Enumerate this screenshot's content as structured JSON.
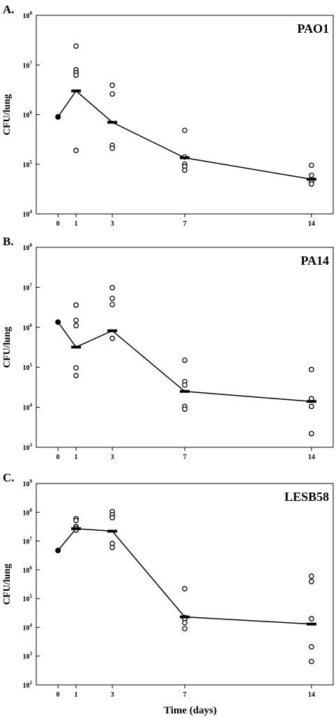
{
  "figure": {
    "xlabel": "Time (days)"
  },
  "chart_data": [
    {
      "panel": "A.",
      "strain": "PAO1",
      "type": "scatter",
      "ylabel": "CFU/lung",
      "yscale": "log",
      "ylim": [
        10000,
        100000000
      ],
      "xlim": [
        -1.2,
        15.2
      ],
      "xticks": [
        0,
        1,
        3,
        7,
        14
      ],
      "yticks": [
        {
          "base": "10",
          "exp": "4"
        },
        {
          "base": "10",
          "exp": "5"
        },
        {
          "base": "10",
          "exp": "6"
        },
        {
          "base": "10",
          "exp": "7"
        },
        {
          "base": "10",
          "exp": "8"
        }
      ],
      "initial": {
        "x": 0,
        "y": 900000
      },
      "points": [
        {
          "x": 1,
          "y": 24000000
        },
        {
          "x": 1,
          "y": 8000000
        },
        {
          "x": 1,
          "y": 7000000
        },
        {
          "x": 1,
          "y": 6200000
        },
        {
          "x": 1,
          "y": 190000
        },
        {
          "x": 3,
          "y": 3900000
        },
        {
          "x": 3,
          "y": 2600000
        },
        {
          "x": 3,
          "y": 240000
        },
        {
          "x": 3,
          "y": 210000
        },
        {
          "x": 7,
          "y": 480000
        },
        {
          "x": 7,
          "y": 140000
        },
        {
          "x": 7,
          "y": 100000
        },
        {
          "x": 7,
          "y": 90000
        },
        {
          "x": 7,
          "y": 76000
        },
        {
          "x": 14,
          "y": 95000
        },
        {
          "x": 14,
          "y": 60000
        },
        {
          "x": 14,
          "y": 45000
        },
        {
          "x": 14,
          "y": 40000
        }
      ],
      "means": [
        {
          "x": 1,
          "y": 3000000
        },
        {
          "x": 3,
          "y": 700000
        },
        {
          "x": 7,
          "y": 135000
        },
        {
          "x": 14,
          "y": 50000
        }
      ],
      "line": [
        {
          "x": 0,
          "y": 900000
        },
        {
          "x": 1,
          "y": 3000000
        },
        {
          "x": 3,
          "y": 700000
        },
        {
          "x": 7,
          "y": 135000
        },
        {
          "x": 14,
          "y": 50000
        }
      ]
    },
    {
      "panel": "B.",
      "strain": "PA14",
      "type": "scatter",
      "ylabel": "CFU/lung",
      "yscale": "log",
      "ylim": [
        1000,
        100000000
      ],
      "xlim": [
        -1.2,
        15.2
      ],
      "xticks": [
        0,
        1,
        3,
        7,
        14
      ],
      "yticks": [
        {
          "base": "10",
          "exp": "3"
        },
        {
          "base": "10",
          "exp": "4"
        },
        {
          "base": "10",
          "exp": "5"
        },
        {
          "base": "10",
          "exp": "6"
        },
        {
          "base": "10",
          "exp": "7"
        },
        {
          "base": "10",
          "exp": "8"
        }
      ],
      "initial": {
        "x": 0,
        "y": 1350000
      },
      "points": [
        {
          "x": 1,
          "y": 3600000
        },
        {
          "x": 1,
          "y": 1500000
        },
        {
          "x": 1,
          "y": 1100000
        },
        {
          "x": 1,
          "y": 97000
        },
        {
          "x": 1,
          "y": 62000
        },
        {
          "x": 3,
          "y": 9800000
        },
        {
          "x": 3,
          "y": 5300000
        },
        {
          "x": 3,
          "y": 3700000
        },
        {
          "x": 3,
          "y": 530000
        },
        {
          "x": 7,
          "y": 150000
        },
        {
          "x": 7,
          "y": 44000
        },
        {
          "x": 7,
          "y": 36000
        },
        {
          "x": 7,
          "y": 10500
        },
        {
          "x": 7,
          "y": 9000
        },
        {
          "x": 14,
          "y": 88000
        },
        {
          "x": 14,
          "y": 16500
        },
        {
          "x": 14,
          "y": 10500
        },
        {
          "x": 14,
          "y": 2200
        }
      ],
      "means": [
        {
          "x": 1,
          "y": 320000
        },
        {
          "x": 3,
          "y": 820000
        },
        {
          "x": 7,
          "y": 25000
        },
        {
          "x": 14,
          "y": 14000
        }
      ],
      "line": [
        {
          "x": 0,
          "y": 1350000
        },
        {
          "x": 1,
          "y": 320000
        },
        {
          "x": 3,
          "y": 820000
        },
        {
          "x": 7,
          "y": 25000
        },
        {
          "x": 14,
          "y": 14000
        }
      ]
    },
    {
      "panel": "C.",
      "strain": "LESB58",
      "type": "scatter",
      "ylabel": "CFU/lung",
      "yscale": "log",
      "ylim": [
        100,
        1000000000
      ],
      "xlim": [
        -1.2,
        15.2
      ],
      "xticks": [
        0,
        1,
        3,
        7,
        14
      ],
      "yticks": [
        {
          "base": "10",
          "exp": "2"
        },
        {
          "base": "10",
          "exp": "3"
        },
        {
          "base": "10",
          "exp": "4"
        },
        {
          "base": "10",
          "exp": "5"
        },
        {
          "base": "10",
          "exp": "6"
        },
        {
          "base": "10",
          "exp": "7"
        },
        {
          "base": "10",
          "exp": "8"
        },
        {
          "base": "10",
          "exp": "9"
        }
      ],
      "initial": {
        "x": 0,
        "y": 4700000
      },
      "points": [
        {
          "x": 1,
          "y": 60000000
        },
        {
          "x": 1,
          "y": 52000000
        },
        {
          "x": 1,
          "y": 32000000
        },
        {
          "x": 1,
          "y": 28000000
        },
        {
          "x": 1,
          "y": 24000000
        },
        {
          "x": 3,
          "y": 105000000
        },
        {
          "x": 3,
          "y": 82000000
        },
        {
          "x": 3,
          "y": 65000000
        },
        {
          "x": 3,
          "y": 8200000
        },
        {
          "x": 3,
          "y": 6000000
        },
        {
          "x": 7,
          "y": 220000
        },
        {
          "x": 7,
          "y": 22000
        },
        {
          "x": 7,
          "y": 20000
        },
        {
          "x": 7,
          "y": 14500
        },
        {
          "x": 7,
          "y": 9000
        },
        {
          "x": 14,
          "y": 600000
        },
        {
          "x": 14,
          "y": 390000
        },
        {
          "x": 14,
          "y": 20000
        },
        {
          "x": 14,
          "y": 2100
        },
        {
          "x": 14,
          "y": 650
        }
      ],
      "means": [
        {
          "x": 1,
          "y": 27000000
        },
        {
          "x": 3,
          "y": 22000000
        },
        {
          "x": 7,
          "y": 23000
        },
        {
          "x": 14,
          "y": 13000
        }
      ],
      "line": [
        {
          "x": 0,
          "y": 4700000
        },
        {
          "x": 1,
          "y": 27000000
        },
        {
          "x": 3,
          "y": 22000000
        },
        {
          "x": 7,
          "y": 23000
        },
        {
          "x": 14,
          "y": 13000
        }
      ]
    }
  ]
}
